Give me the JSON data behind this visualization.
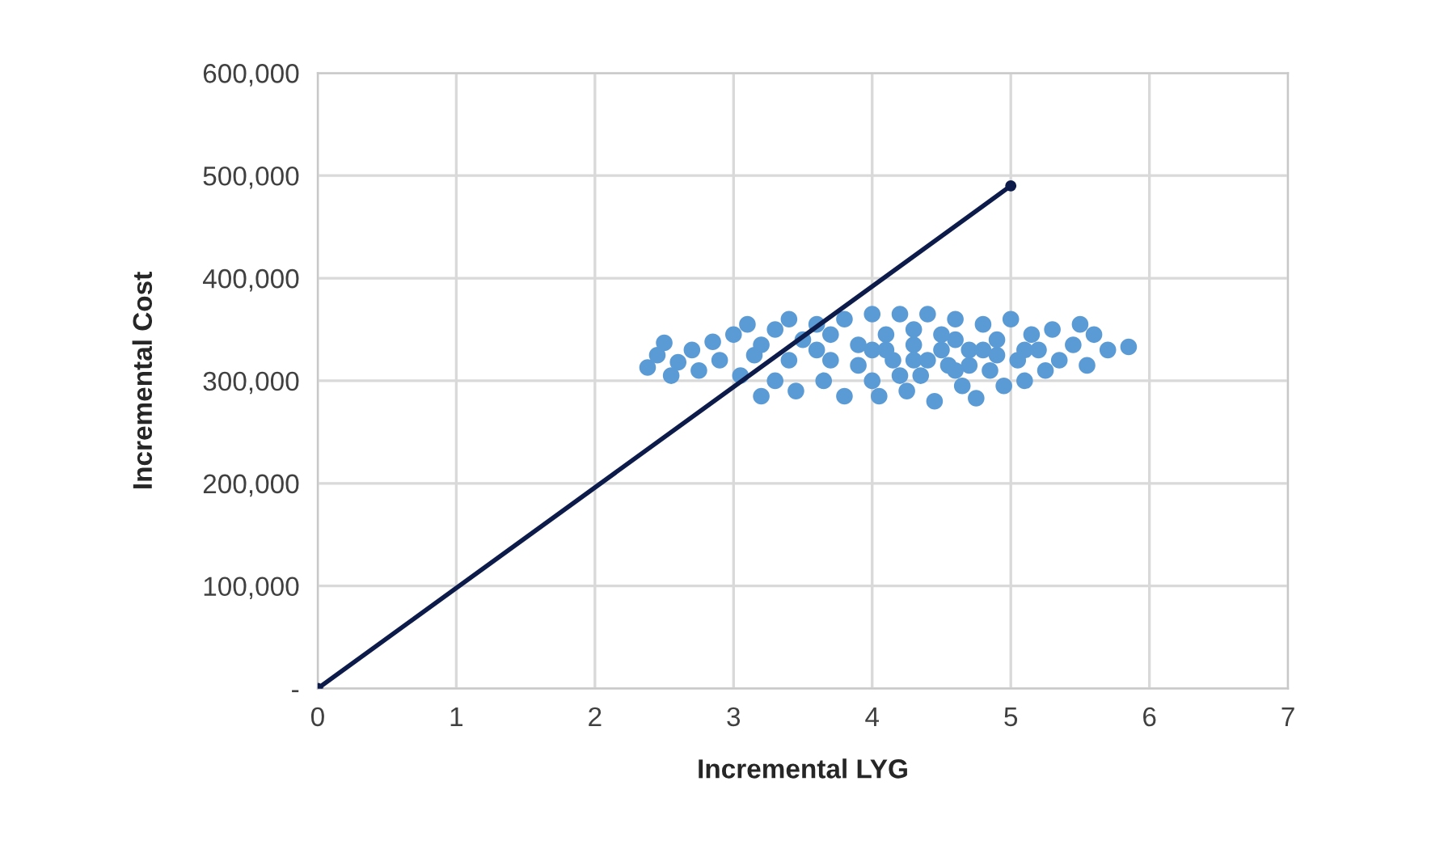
{
  "chart_data": {
    "type": "scatter",
    "xlabel": "Incremental LYG",
    "ylabel": "Incremental Cost",
    "xlim": [
      0,
      7
    ],
    "xticks": [
      0,
      1,
      2,
      3,
      4,
      5,
      6,
      7
    ],
    "ylim": [
      0,
      600000
    ],
    "yticks": [
      {
        "value": 0,
        "label": "-"
      },
      {
        "value": 100000,
        "label": "100,000"
      },
      {
        "value": 200000,
        "label": "200,000"
      },
      {
        "value": 300000,
        "label": "300,000"
      },
      {
        "value": 400000,
        "label": "400,000"
      },
      {
        "value": 500000,
        "label": "500,000"
      },
      {
        "value": 600000,
        "label": "600,000"
      }
    ],
    "grid": true,
    "legend": false,
    "series": [
      {
        "color": "#5b9bd5",
        "marker": "circle",
        "x": [
          2.38,
          2.45,
          2.5,
          2.55,
          2.6,
          2.7,
          2.75,
          2.85,
          2.9,
          3.0,
          3.05,
          3.1,
          3.15,
          3.2,
          3.3,
          3.3,
          3.4,
          3.45,
          3.5,
          3.6,
          3.65,
          3.7,
          3.8,
          3.8,
          3.9,
          4.0,
          4.0,
          4.05,
          4.1,
          4.15,
          4.2,
          4.25,
          4.3,
          4.35,
          4.4,
          4.45,
          4.5,
          4.55,
          4.6,
          4.65,
          4.7,
          4.75,
          4.8,
          4.85,
          4.9,
          4.95,
          5.0,
          5.05,
          5.1,
          5.15,
          5.2,
          5.25,
          5.3,
          5.35,
          5.45,
          5.5,
          5.55,
          5.6,
          5.7,
          5.85,
          3.6,
          3.9,
          4.1,
          4.3,
          4.5,
          4.7,
          4.9,
          4.2,
          4.6,
          3.4,
          3.2,
          4.0,
          4.4,
          4.8,
          5.1,
          3.7,
          4.3,
          4.6
        ],
        "values": [
          313000,
          325000,
          337000,
          305000,
          318000,
          330000,
          310000,
          338000,
          320000,
          345000,
          305000,
          355000,
          325000,
          285000,
          350000,
          300000,
          360000,
          290000,
          340000,
          355000,
          300000,
          320000,
          360000,
          285000,
          335000,
          365000,
          300000,
          285000,
          345000,
          320000,
          365000,
          290000,
          335000,
          305000,
          365000,
          280000,
          345000,
          315000,
          360000,
          295000,
          330000,
          283000,
          355000,
          310000,
          340000,
          295000,
          360000,
          320000,
          300000,
          345000,
          330000,
          310000,
          350000,
          320000,
          335000,
          355000,
          315000,
          345000,
          330000,
          333000,
          330000,
          315000,
          330000,
          320000,
          330000,
          315000,
          325000,
          305000,
          340000,
          320000,
          335000,
          330000,
          320000,
          330000,
          330000,
          345000,
          350000,
          310000
        ]
      },
      {
        "type": "line",
        "color": "#0d1b4a",
        "marker": "circle",
        "line_style": "solid",
        "x": [
          0,
          5
        ],
        "values": [
          0,
          490000
        ]
      }
    ]
  }
}
